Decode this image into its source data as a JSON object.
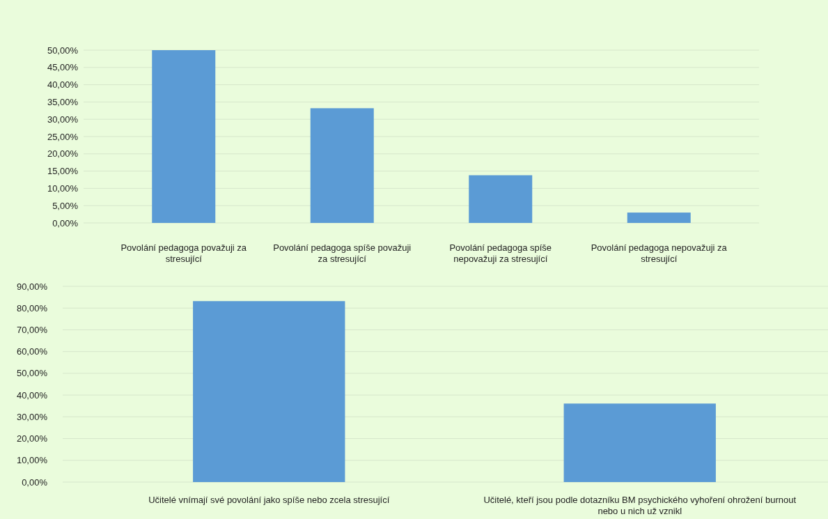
{
  "chart_data": [
    {
      "type": "bar",
      "categories": [
        "Povolání pedagoga považuji za stresující",
        "Povolání pedagoga spíše považuji za stresující",
        "Povolání pedagoga spíše nepovažuji za stresující",
        "Povolání pedagoga nepovažuji za stresující"
      ],
      "values": [
        50.0,
        33.2,
        13.8,
        3.0
      ],
      "color": "#5b9bd5",
      "ylim": [
        0,
        50
      ],
      "yticks": [
        {
          "value": 0,
          "label": "0,00%"
        },
        {
          "value": 5,
          "label": "5,00%"
        },
        {
          "value": 10,
          "label": "10,00%"
        },
        {
          "value": 15,
          "label": "15,00%"
        },
        {
          "value": 20,
          "label": "20,00%"
        },
        {
          "value": 25,
          "label": "25,00%"
        },
        {
          "value": 30,
          "label": "30,00%"
        },
        {
          "value": 35,
          "label": "35,00%"
        },
        {
          "value": 40,
          "label": "40,00%"
        },
        {
          "value": 45,
          "label": "45,00%"
        },
        {
          "value": 50,
          "label": "50,00%"
        }
      ],
      "grid": "y"
    },
    {
      "type": "bar",
      "categories": [
        "Učitelé vnímají své povolání jako spíše nebo zcela stresující",
        "Učitelé, kteří jsou podle dotazníku BM psychického vyhoření ohrožení burnout nebo u nich už vznikl"
      ],
      "values": [
        83.2,
        36.1
      ],
      "color": "#5b9bd5",
      "ylim": [
        0,
        90
      ],
      "yticks": [
        {
          "value": 0,
          "label": "0,00%"
        },
        {
          "value": 10,
          "label": "10,00%"
        },
        {
          "value": 20,
          "label": "20,00%"
        },
        {
          "value": 30,
          "label": "30,00%"
        },
        {
          "value": 40,
          "label": "40,00%"
        },
        {
          "value": 50,
          "label": "50,00%"
        },
        {
          "value": 60,
          "label": "60,00%"
        },
        {
          "value": 70,
          "label": "70,00%"
        },
        {
          "value": 80,
          "label": "80,00%"
        },
        {
          "value": 90,
          "label": "90,00%"
        }
      ],
      "grid": "y"
    }
  ]
}
